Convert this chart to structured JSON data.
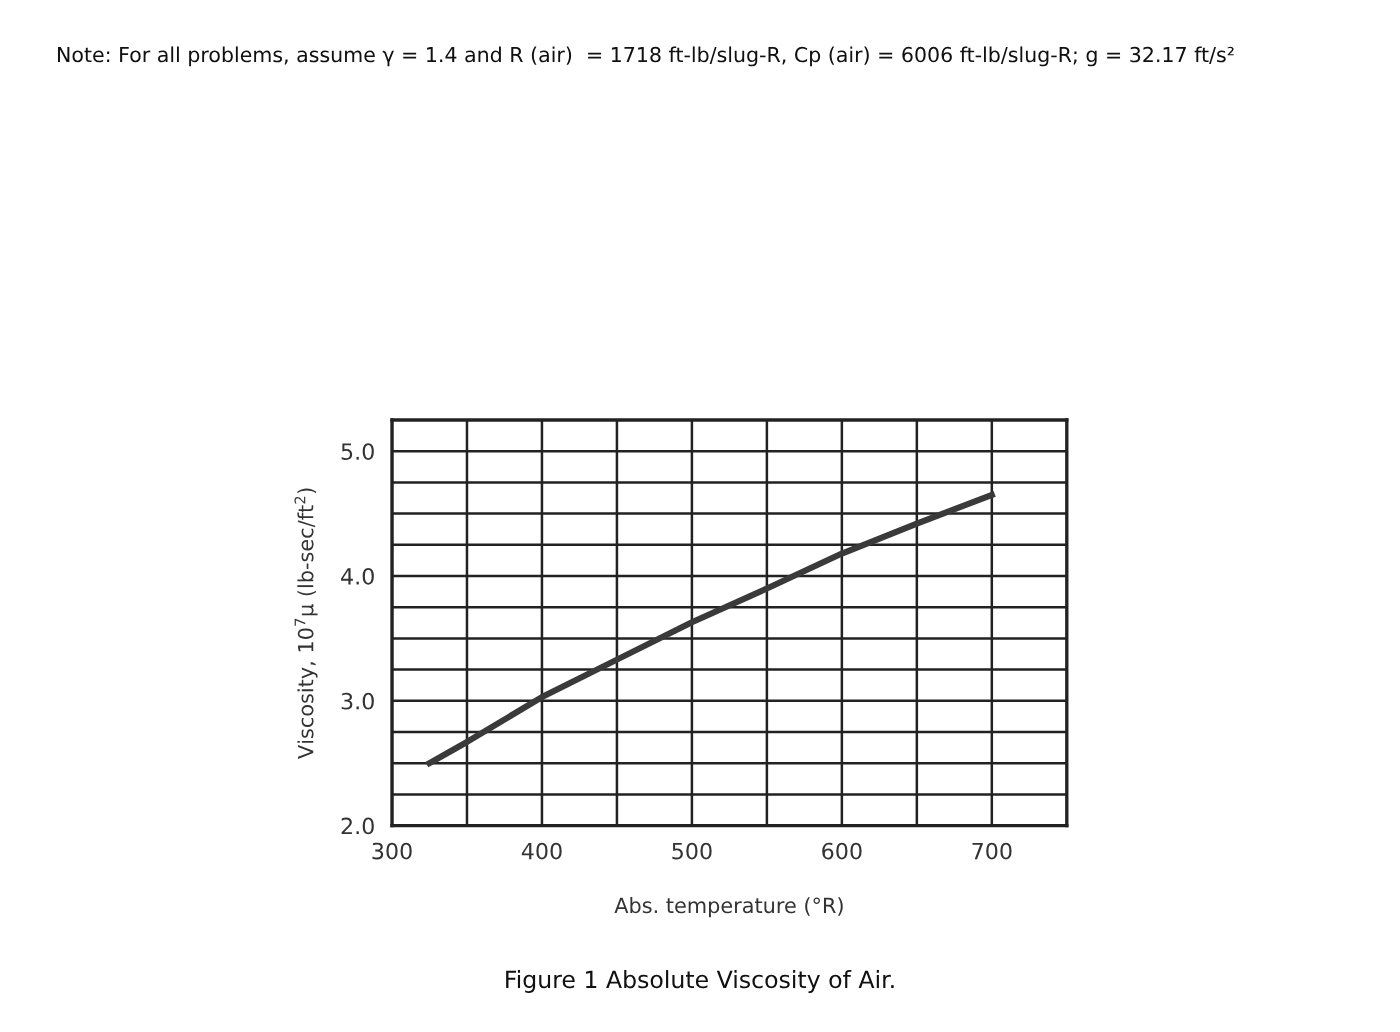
{
  "chart_data": {
    "type": "line",
    "xlabel": "Abs. temperature (°R)",
    "ylabel": "Viscosity, 10$^{7}$μ (lb-sec/ft$^{2}$)",
    "annotations": [
      "Note: For all problems, assume γ = 1.4 and R (air)  = 1718 ft-lb/slug-R, Cp (air) = 6006 ft-lb/slug-R; g = 32.17 ft/s²",
      "Figure 1 Absolute Viscosity of Air."
    ],
    "x": [
      325,
      350,
      400,
      450,
      500,
      550,
      600,
      650,
      700
    ],
    "series": [
      {
        "color": "#3a3a3a",
        "values": [
          2.5,
          2.67,
          3.03,
          3.33,
          3.63,
          3.9,
          4.18,
          4.42,
          4.65
        ]
      }
    ],
    "xlim": [
      300,
      750
    ],
    "ylim": [
      2.0,
      5.25
    ],
    "xticks": [
      300,
      {
        "value": 350,
        "label": null
      },
      400,
      {
        "value": 450,
        "label": null
      },
      500,
      {
        "value": 550,
        "label": null
      },
      600,
      {
        "value": 650,
        "label": null
      },
      700
    ],
    "yticks": [
      {
        "value": 2,
        "label": "2.0"
      },
      {
        "value": 2.25,
        "label": null
      },
      {
        "value": 2.5,
        "label": null
      },
      {
        "value": 2.75,
        "label": null
      },
      {
        "value": 3,
        "label": "3.0"
      },
      {
        "value": 3.25,
        "label": null
      },
      {
        "value": 3.5,
        "label": null
      },
      {
        "value": 3.75,
        "label": null
      },
      {
        "value": 4,
        "label": "4.0"
      },
      {
        "value": 4.25,
        "label": null
      },
      {
        "value": 4.5,
        "label": null
      },
      {
        "value": 4.75,
        "label": null
      },
      {
        "value": 5,
        "label": "5.0"
      }
    ],
    "grid": true,
    "line_style": "solid",
    "marker": "none"
  }
}
